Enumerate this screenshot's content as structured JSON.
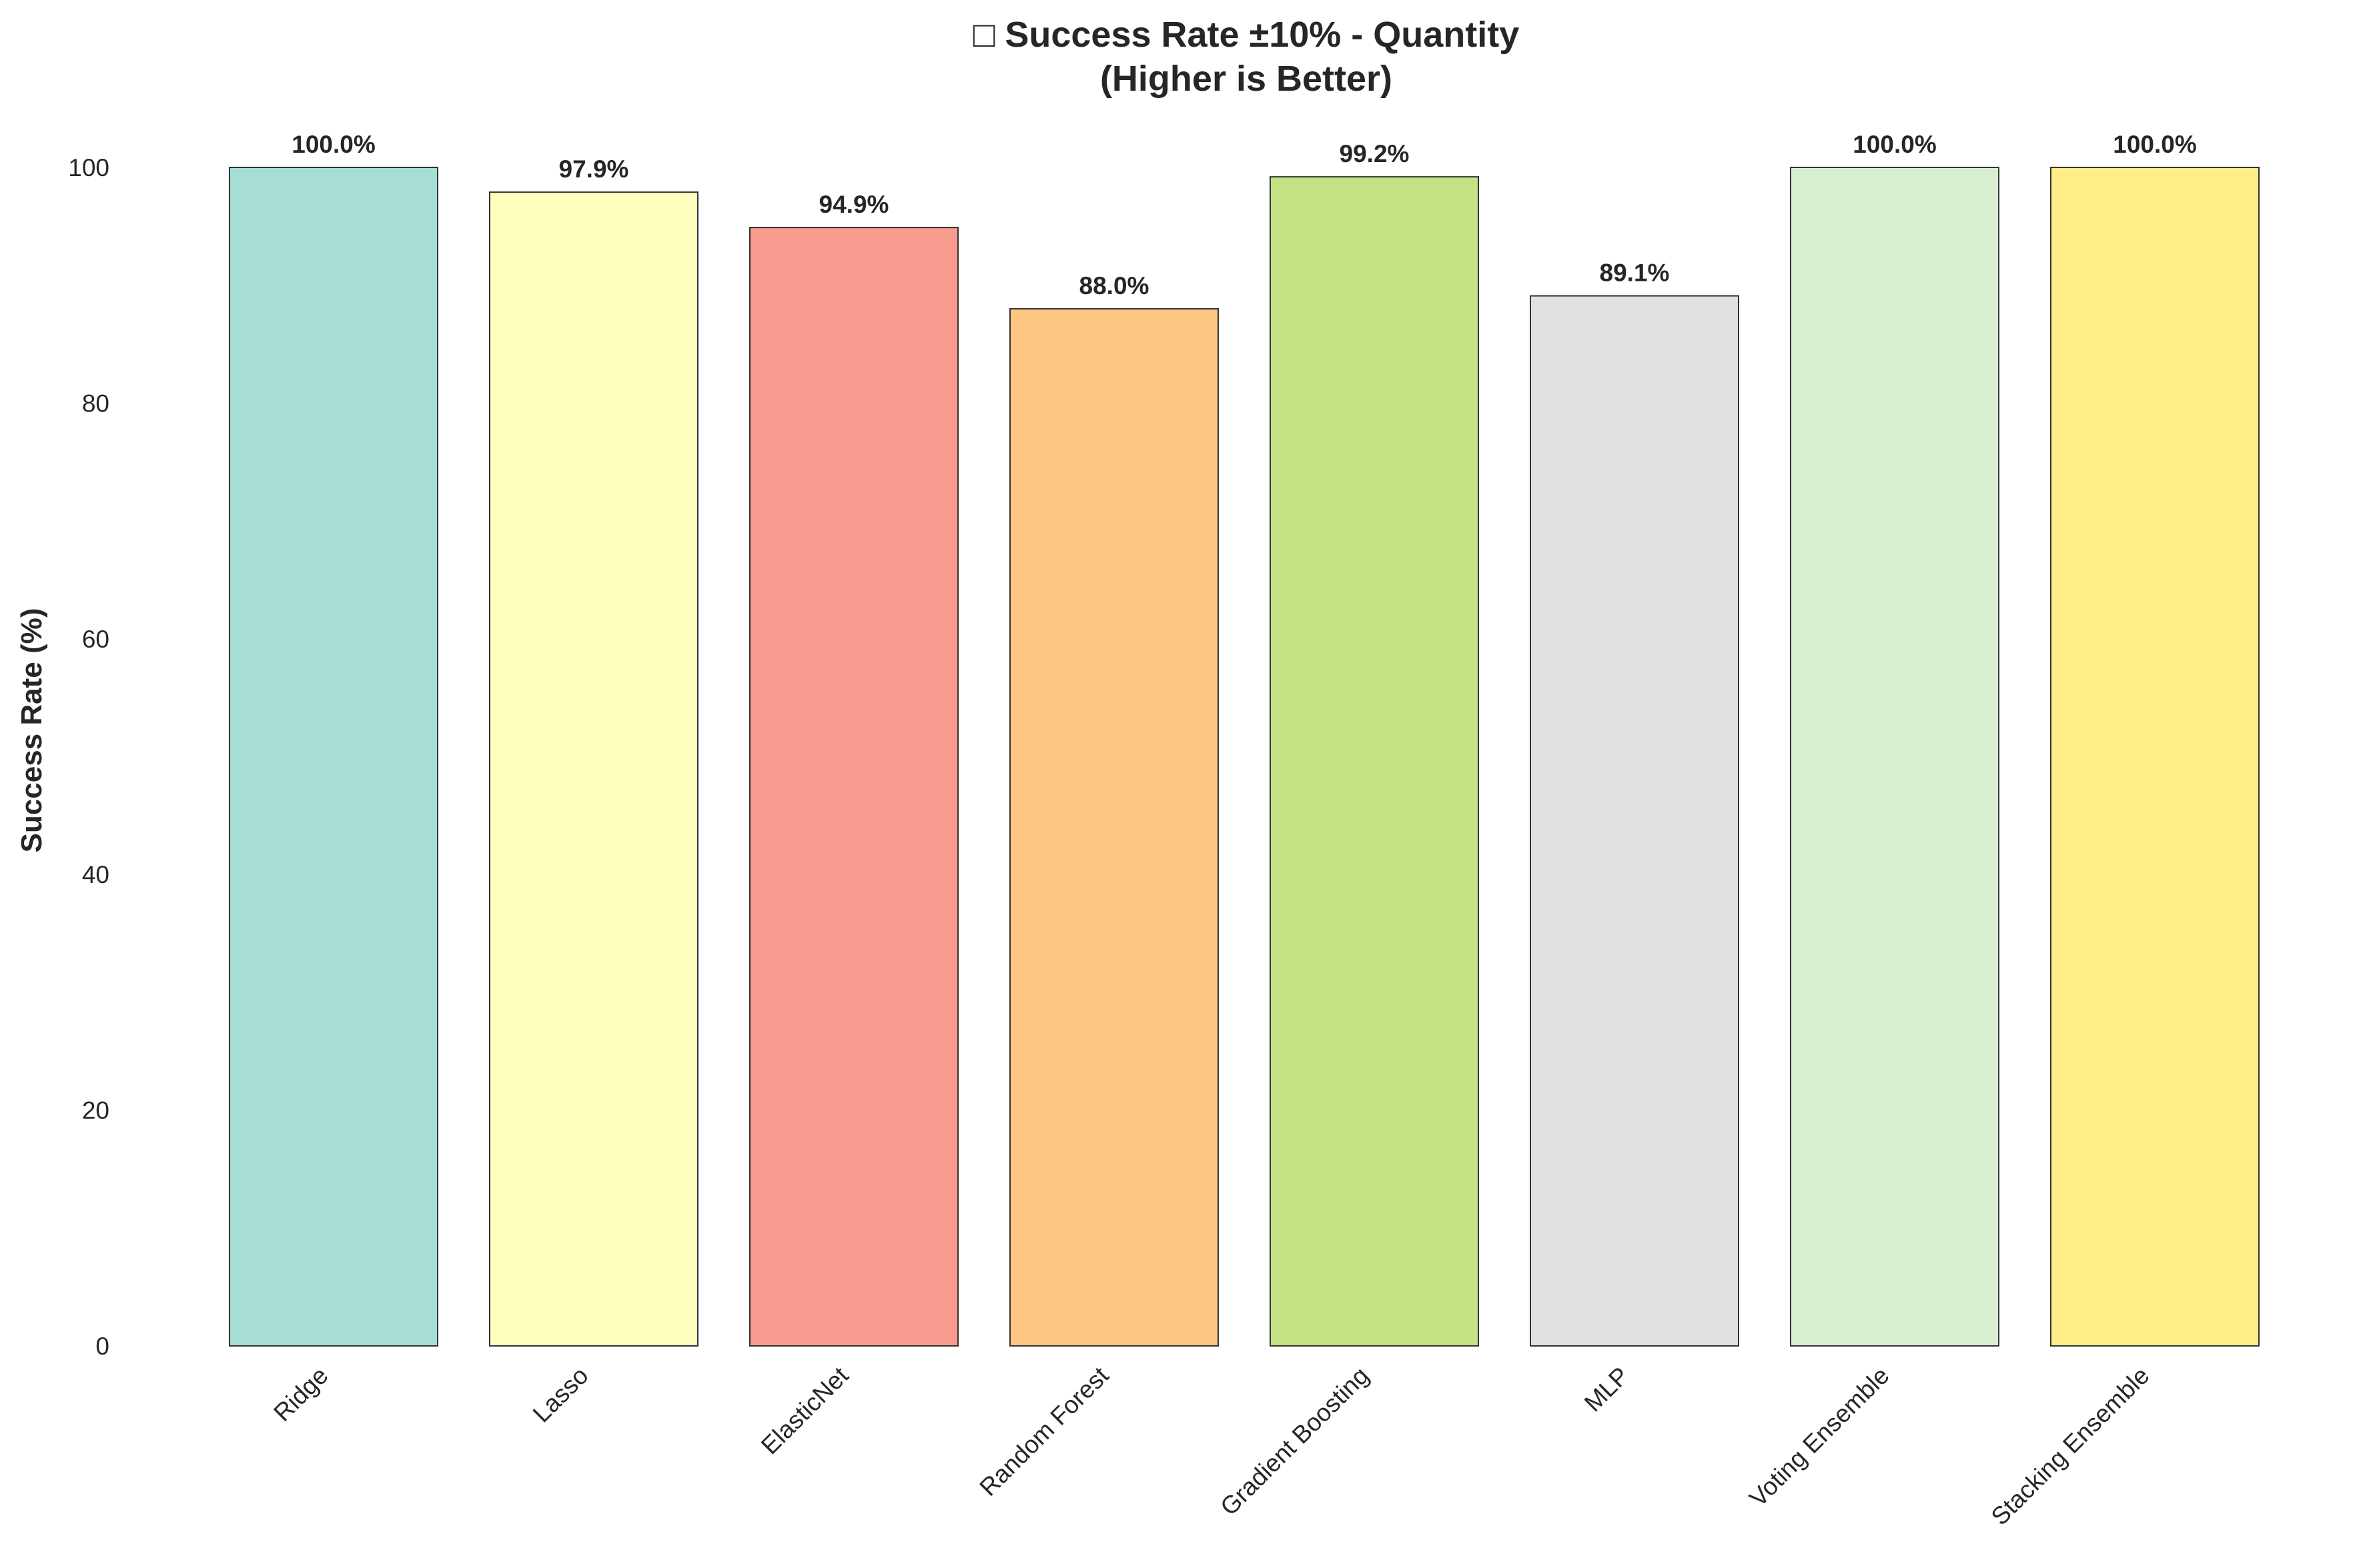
{
  "chart_data": {
    "type": "bar",
    "title_line1": "□ Success Rate ±10% - Quantity",
    "title_line2": "(Higher is Better)",
    "xlabel": "",
    "ylabel": "Success Rate (%)",
    "ylim": [
      0,
      100
    ],
    "yticks": [
      0,
      20,
      40,
      60,
      80,
      100
    ],
    "grid": false,
    "categories": [
      "Ridge",
      "Lasso",
      "ElasticNet",
      "Random Forest",
      "Gradient Boosting",
      "MLP",
      "Voting Ensemble",
      "Stacking Ensemble"
    ],
    "values": [
      100.0,
      97.9,
      94.9,
      88.0,
      99.2,
      89.1,
      100.0,
      100.0
    ],
    "value_labels": [
      "100.0%",
      "97.9%",
      "94.9%",
      "88.0%",
      "99.2%",
      "89.1%",
      "100.0%",
      "100.0%"
    ],
    "colors": [
      "#a6ddd5",
      "#ffffbf",
      "#fa9b8f",
      "#fdc482",
      "#c4e385",
      "#e0e0e0",
      "#d7efd0",
      "#ffed87"
    ]
  }
}
